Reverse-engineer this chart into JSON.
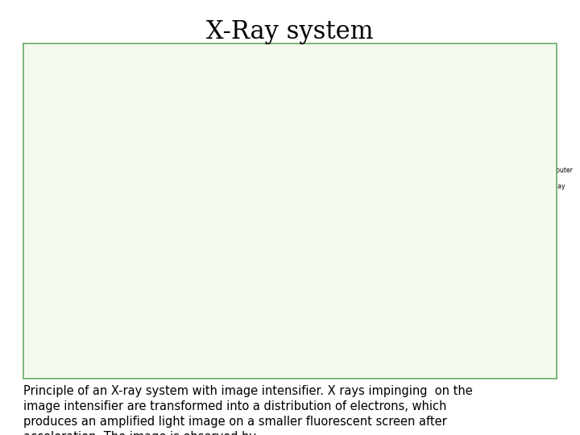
{
  "title": "X-Ray system",
  "title_fontsize": 22,
  "title_font": "serif",
  "body_text": "Principle of an X-ray system with image intensifier. X rays impinging  on the\nimage intensifier are transformed into a distribution of electrons, which\nproduces an amplified light image on a smaller fluorescent screen after\nacceleration. The image is observed by\na television camera and a film camera and can be viewed on a computer\nscreen and",
  "body_fontsize": 10.5,
  "bg_color": "#ffffff",
  "border_color": "#66aa66",
  "diagram_bg": "#f5faee",
  "green_color": "#00bb00",
  "light_green": "#99dd99",
  "dark_green": "#005500",
  "red_dashed": "#cc0000",
  "gray_color": "#888888",
  "light_gray": "#cccccc",
  "dark_gray": "#555555",
  "monitor_screen": "#bbddbb",
  "text_color": "#000000",
  "box_fill": "#e8e8e8"
}
